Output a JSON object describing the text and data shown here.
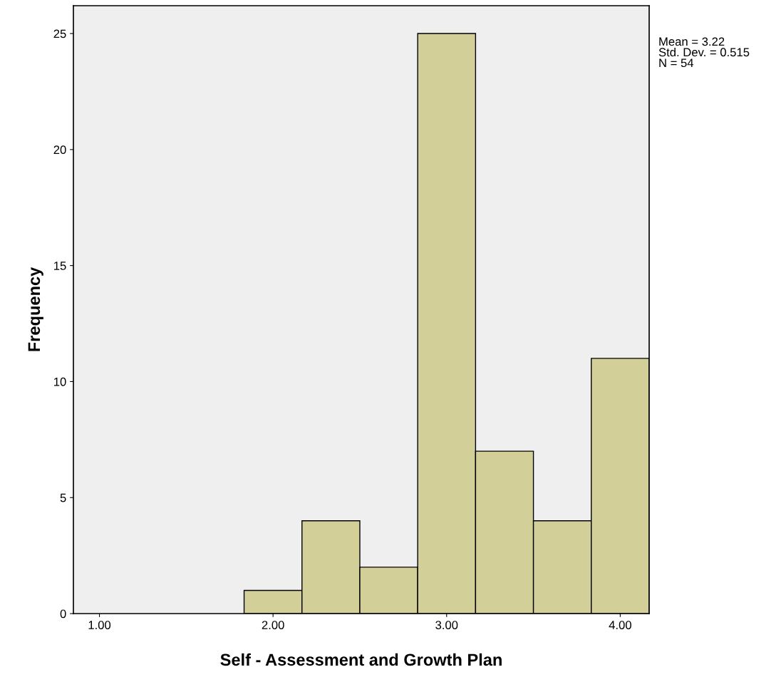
{
  "chart_data": {
    "type": "histogram",
    "xlabel": "Self - Assessment and Growth Plan",
    "ylabel": "Frequency",
    "bins": [
      1.8333,
      2.1667,
      2.5,
      2.8333,
      3.1667,
      3.5,
      3.8333,
      4.1667
    ],
    "values": [
      1,
      4,
      2,
      25,
      7,
      4,
      11
    ],
    "color": "#d3cf99",
    "xlim": [
      0.85,
      4.1667
    ],
    "xticks": [
      {
        "value": 1,
        "label": "1.00"
      },
      {
        "value": 2,
        "label": "2.00"
      },
      {
        "value": 3,
        "label": "3.00"
      },
      {
        "value": 4,
        "label": "4.00"
      }
    ],
    "ylim": [
      0,
      26.2
    ],
    "yticks": [
      0,
      5,
      10,
      15,
      20,
      25
    ],
    "grid": false,
    "legend": false,
    "annotations": [
      "Mean = 3.22",
      "Std. Dev. = 0.515",
      "N = 54"
    ]
  }
}
